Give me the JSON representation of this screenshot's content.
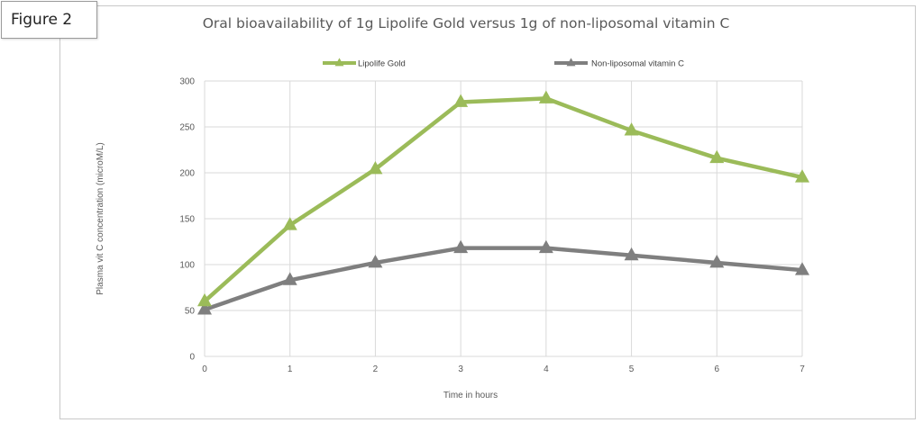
{
  "figure_label": "Figure 2",
  "chart_data": {
    "type": "line",
    "title": "Oral bioavailability of 1g Lipolife Gold versus 1g of non-liposomal vitamin C",
    "xlabel": "Time in hours",
    "ylabel": "Plasma vit C concentration (microM/L)",
    "x": [
      0,
      1,
      2,
      3,
      4,
      5,
      6,
      7
    ],
    "xlim": [
      0,
      7
    ],
    "ylim": [
      0,
      300
    ],
    "yticks": [
      0,
      50,
      100,
      150,
      200,
      250,
      300
    ],
    "grid": true,
    "legend_position": "top",
    "series": [
      {
        "name": "Lipolife Gold",
        "color": "#9bbb59",
        "marker": "triangle",
        "values": [
          60,
          143,
          204,
          277,
          281,
          246,
          216,
          195
        ]
      },
      {
        "name": "Non-liposomal vitamin C",
        "color": "#7f7f7f",
        "marker": "triangle",
        "values": [
          51,
          83,
          102,
          118,
          118,
          110,
          102,
          94
        ]
      }
    ]
  }
}
